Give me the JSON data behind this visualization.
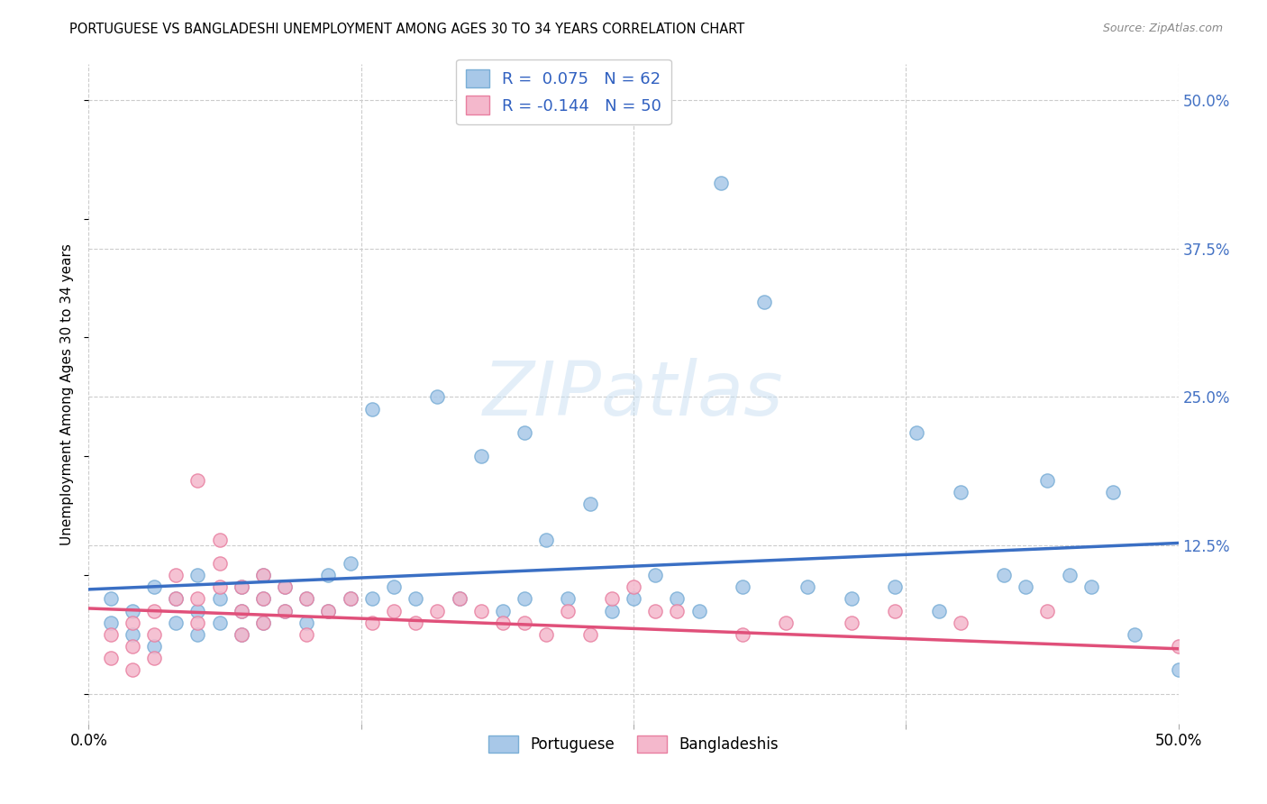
{
  "title": "PORTUGUESE VS BANGLADESHI UNEMPLOYMENT AMONG AGES 30 TO 34 YEARS CORRELATION CHART",
  "source": "Source: ZipAtlas.com",
  "ylabel": "Unemployment Among Ages 30 to 34 years",
  "background_color": "#ffffff",
  "grid_color": "#cccccc",
  "portuguese_color": "#a8c8e8",
  "portuguese_edge_color": "#7aaed6",
  "bangladeshi_color": "#f4b8cc",
  "bangladeshi_edge_color": "#e87fa0",
  "portuguese_line_color": "#3a6fc4",
  "bangladeshi_line_color": "#e0507a",
  "portuguese_R": 0.075,
  "portuguese_N": 62,
  "bangladeshi_R": -0.144,
  "bangladeshi_N": 50,
  "xlim": [
    0.0,
    0.5
  ],
  "ylim": [
    -0.025,
    0.53
  ],
  "port_x": [
    0.01,
    0.01,
    0.02,
    0.02,
    0.03,
    0.03,
    0.04,
    0.04,
    0.05,
    0.05,
    0.05,
    0.06,
    0.06,
    0.07,
    0.07,
    0.07,
    0.08,
    0.08,
    0.08,
    0.09,
    0.09,
    0.1,
    0.1,
    0.11,
    0.11,
    0.12,
    0.12,
    0.13,
    0.13,
    0.14,
    0.15,
    0.16,
    0.17,
    0.18,
    0.19,
    0.2,
    0.2,
    0.21,
    0.22,
    0.23,
    0.24,
    0.25,
    0.26,
    0.27,
    0.28,
    0.29,
    0.3,
    0.31,
    0.33,
    0.35,
    0.37,
    0.38,
    0.39,
    0.4,
    0.42,
    0.43,
    0.44,
    0.45,
    0.46,
    0.47,
    0.48,
    0.5
  ],
  "port_y": [
    0.06,
    0.08,
    0.05,
    0.07,
    0.04,
    0.09,
    0.06,
    0.08,
    0.05,
    0.07,
    0.1,
    0.06,
    0.08,
    0.05,
    0.07,
    0.09,
    0.06,
    0.08,
    0.1,
    0.07,
    0.09,
    0.06,
    0.08,
    0.07,
    0.1,
    0.08,
    0.11,
    0.08,
    0.24,
    0.09,
    0.08,
    0.25,
    0.08,
    0.2,
    0.07,
    0.22,
    0.08,
    0.13,
    0.08,
    0.16,
    0.07,
    0.08,
    0.1,
    0.08,
    0.07,
    0.43,
    0.09,
    0.33,
    0.09,
    0.08,
    0.09,
    0.22,
    0.07,
    0.17,
    0.1,
    0.09,
    0.18,
    0.1,
    0.09,
    0.17,
    0.05,
    0.02
  ],
  "bang_x": [
    0.01,
    0.01,
    0.02,
    0.02,
    0.02,
    0.03,
    0.03,
    0.03,
    0.04,
    0.04,
    0.05,
    0.05,
    0.05,
    0.06,
    0.06,
    0.06,
    0.07,
    0.07,
    0.07,
    0.08,
    0.08,
    0.08,
    0.09,
    0.09,
    0.1,
    0.1,
    0.11,
    0.12,
    0.13,
    0.14,
    0.15,
    0.16,
    0.17,
    0.18,
    0.19,
    0.2,
    0.21,
    0.22,
    0.23,
    0.24,
    0.25,
    0.26,
    0.27,
    0.3,
    0.32,
    0.35,
    0.37,
    0.4,
    0.44,
    0.5
  ],
  "bang_y": [
    0.03,
    0.05,
    0.04,
    0.06,
    0.02,
    0.03,
    0.05,
    0.07,
    0.08,
    0.1,
    0.06,
    0.08,
    0.18,
    0.09,
    0.11,
    0.13,
    0.07,
    0.09,
    0.05,
    0.06,
    0.08,
    0.1,
    0.07,
    0.09,
    0.05,
    0.08,
    0.07,
    0.08,
    0.06,
    0.07,
    0.06,
    0.07,
    0.08,
    0.07,
    0.06,
    0.06,
    0.05,
    0.07,
    0.05,
    0.08,
    0.09,
    0.07,
    0.07,
    0.05,
    0.06,
    0.06,
    0.07,
    0.06,
    0.07,
    0.04
  ],
  "port_line_x0": 0.0,
  "port_line_x1": 0.5,
  "port_line_y0": 0.088,
  "port_line_y1": 0.127,
  "bang_line_x0": 0.0,
  "bang_line_x1": 0.5,
  "bang_line_y0": 0.072,
  "bang_line_y1": 0.038
}
